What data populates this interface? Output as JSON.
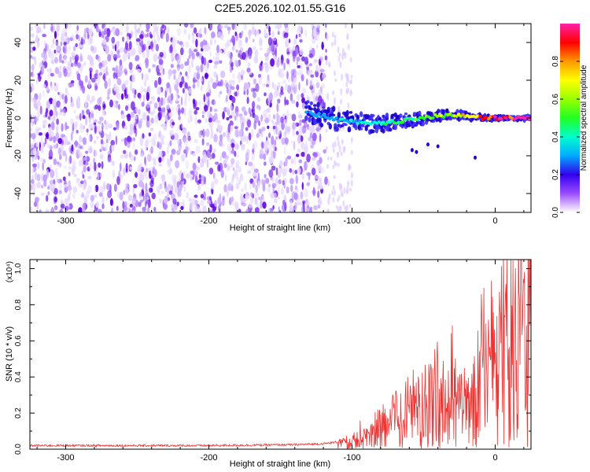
{
  "title": "C2E5.2026.102.01.55.G16",
  "chart_data": [
    {
      "type": "heatmap",
      "name": "spectrogram",
      "xlabel": "Height of straight line (km)",
      "ylabel": "Frequency (Hz)",
      "xlim": [
        -325,
        25
      ],
      "ylim": [
        -50,
        50
      ],
      "xticks": [
        -300,
        -200,
        -100,
        0
      ],
      "xtick_labels": [
        "-300",
        "-200",
        "-100",
        "0"
      ],
      "yticks": [
        -40,
        -20,
        0,
        20,
        40
      ],
      "ytick_labels": [
        "-40",
        "-20",
        "0",
        "20",
        "40"
      ],
      "colorbar": {
        "label": "Normalized spectral amplitude",
        "range": [
          0,
          1
        ],
        "ticks": [
          0.0,
          0.2,
          0.4,
          0.6,
          0.8
        ],
        "tick_labels": [
          "0.0",
          "0.2",
          "0.4",
          "0.6",
          "0.8"
        ]
      },
      "noise_region_x": [
        -325,
        -100
      ],
      "signal_ridge": {
        "x": [
          -132,
          -120,
          -110,
          -100,
          -90,
          -80,
          -70,
          -60,
          -50,
          -40,
          -30,
          -20,
          -10,
          0,
          10,
          25
        ],
        "frequency": [
          3,
          1,
          -1,
          -2,
          -3,
          -3,
          -2,
          -1,
          0,
          1,
          2,
          1,
          0,
          0,
          0,
          0
        ],
        "amplitude": [
          0.2,
          0.25,
          0.3,
          0.3,
          0.35,
          0.35,
          0.4,
          0.45,
          0.5,
          0.55,
          0.6,
          0.7,
          0.8,
          0.9,
          0.95,
          1.0
        ]
      }
    },
    {
      "type": "line",
      "name": "snr",
      "xlabel": "Height of straight line (km)",
      "ylabel": "SNR (10 * v/v)",
      "multiplier": "(x10⁴)",
      "xlim": [
        -325,
        25
      ],
      "ylim": [
        0,
        1.05
      ],
      "xticks": [
        -300,
        -200,
        -100,
        0
      ],
      "xtick_labels": [
        "-300",
        "-200",
        "-100",
        "0"
      ],
      "yticks": [
        0.0,
        0.2,
        0.4,
        0.6,
        0.8,
        1.0
      ],
      "ytick_labels": [
        "0.0",
        "0.2",
        "0.4",
        "0.6",
        "0.8",
        "1.0"
      ],
      "series": [
        {
          "name": "SNR",
          "color": "#ee3333",
          "x": [
            -325,
            -200,
            -140,
            -120,
            -110,
            -100,
            -95,
            -90,
            -85,
            -80,
            -75,
            -70,
            -65,
            -60,
            -55,
            -50,
            -45,
            -40,
            -35,
            -30,
            -25,
            -20,
            -15,
            -10,
            -5,
            0,
            5,
            10,
            15,
            20,
            25
          ],
          "y": [
            0.02,
            0.02,
            0.025,
            0.03,
            0.04,
            0.05,
            0.08,
            0.1,
            0.12,
            0.14,
            0.17,
            0.2,
            0.22,
            0.26,
            0.3,
            0.35,
            0.34,
            0.3,
            0.32,
            0.35,
            0.33,
            0.3,
            0.35,
            0.55,
            0.62,
            0.6,
            0.7,
            0.65,
            0.75,
            0.85,
            0.9
          ]
        }
      ]
    }
  ]
}
